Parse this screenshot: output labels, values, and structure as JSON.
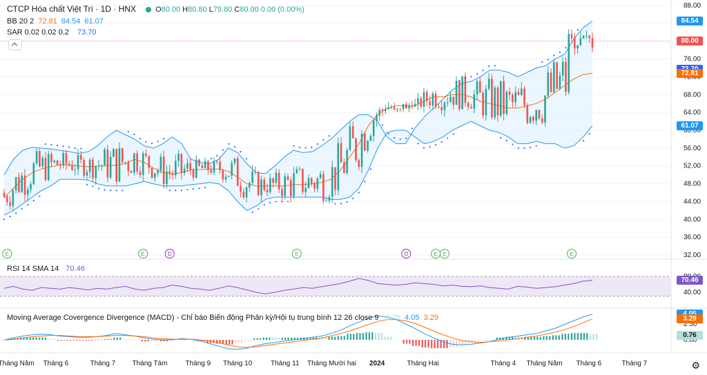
{
  "header": {
    "symbol_title": "CTCP Hóa chất Việt Trì · 1D · HNX",
    "ohlc": [
      {
        "k": "O",
        "v": "80.00"
      },
      {
        "k": "H",
        "v": "80.80"
      },
      {
        "k": "L",
        "v": "79.80"
      },
      {
        "k": "C",
        "v": "80.00"
      },
      {
        "k": "",
        "v": "0.00 (0.00%)"
      }
    ],
    "bb_label": "BB 20 2",
    "bb_values": [
      "72.81",
      "84.54",
      "61.07"
    ],
    "sar_label": "SAR 0.02 0.02 0.2",
    "sar_value": "73.70"
  },
  "rsi_legend": {
    "label": "RSI 14 SMA 14",
    "value": "70.46"
  },
  "macd_legend": {
    "label": "Moving Average Covergence Divergence (MACD) - Chỉ báo Biến động Phân kỳ/Hội tụ trung bình 12 26 close 9",
    "values": [
      "0.76",
      "4.05",
      "3.29"
    ]
  },
  "colors": {
    "up": "#26a69a",
    "down": "#ef5350",
    "bb_mid": "#ff6d00",
    "bb_band": "#2196f3",
    "bb_fill": "#e3f2fd",
    "sar": "#2962ff",
    "rsi": "#7e57c2",
    "rsi_fill": "#ede7f6",
    "macd": "#2196f3",
    "signal": "#ff6d00",
    "hist_up_strong": "#26a69a",
    "hist_up_weak": "#b2dfdb",
    "hist_dn_strong": "#ef5350",
    "hist_dn_weak": "#ffcdd2"
  },
  "axis_tags": {
    "price": [
      {
        "v": "84.54",
        "c": "#2196f3",
        "y": 84.54
      },
      {
        "v": "80.00",
        "c": "#ef5350",
        "y": 80.0
      },
      {
        "v": "73.70",
        "c": "#2962ff",
        "y": 73.7
      },
      {
        "v": "72.81",
        "c": "#ff6d00",
        "y": 72.81
      },
      {
        "v": "61.07",
        "c": "#2196f3",
        "y": 61.07
      }
    ],
    "rsi": [
      {
        "v": "70.46",
        "c": "#7e57c2",
        "y": 70.46
      }
    ],
    "macd": [
      {
        "v": "4.05",
        "c": "#2196f3",
        "y": 4.05
      },
      {
        "v": "3.29",
        "c": "#ff6d00",
        "y": 3.29
      },
      {
        "v": "0.76",
        "c": "#b2dfdb",
        "y": 0.76,
        "dark": true
      }
    ]
  },
  "price_ticks": [
    "88.00",
    "84.00",
    "80.00",
    "76.00",
    "72.00",
    "68.00",
    "64.00",
    "60.00",
    "56.00",
    "52.00",
    "48.00",
    "44.00",
    "40.00",
    "36.00",
    "32.00"
  ],
  "rsi_ticks": [
    "80.00",
    "40.00"
  ],
  "macd_ticks": [
    "2.50",
    "0.00"
  ],
  "time_labels": [
    "Tháng Năm",
    "Tháng 6",
    "Tháng 7",
    "Tháng Tám",
    "Tháng 9",
    "Tháng 10",
    "Tháng 11",
    "Tháng Mười hai",
    "2024",
    "Tháng Hai",
    "Tháng 4",
    "Tháng Năm",
    "Tháng 6",
    "Tháng 7"
  ],
  "event_markers": [
    {
      "t": "E",
      "i": 1,
      "kind": "E"
    },
    {
      "t": "E",
      "i": 47,
      "kind": "E"
    },
    {
      "t": "D",
      "i": 56,
      "kind": "D"
    },
    {
      "t": "E",
      "i": 99,
      "kind": "E"
    },
    {
      "t": "D",
      "i": 136,
      "kind": "D"
    },
    {
      "t": "E",
      "i": 146,
      "kind": "E"
    },
    {
      "t": "E",
      "i": 149,
      "kind": "E"
    },
    {
      "t": "E",
      "i": 192,
      "kind": "E"
    }
  ],
  "chart_data": {
    "type": "line",
    "title": "CTCP Hóa chất Việt Trì · 1D · HNX",
    "price_range": [
      32,
      88
    ],
    "bb_upper": [
      50,
      53.5,
      55.5,
      56.2,
      56,
      55.8,
      55.5,
      55.2,
      54.8,
      55.2,
      56.5,
      58.5,
      60,
      59,
      58,
      56.5,
      56,
      57,
      58.5,
      57,
      53.5,
      52.8,
      52.5,
      53.5,
      56,
      55,
      52.5,
      50.5,
      50.3,
      52,
      54,
      55.5,
      55,
      55.2,
      56.5,
      58,
      60,
      62,
      63.5,
      63.5,
      62,
      58.5,
      57,
      57,
      60.5,
      63,
      65,
      67,
      69,
      70.5,
      71,
      72,
      73.5,
      73.5,
      73,
      72,
      73,
      74,
      74.5,
      76,
      77,
      80.5,
      83,
      84.5
    ],
    "bb_mid": [
      44.8,
      47,
      49,
      50.5,
      51.3,
      51.8,
      52.3,
      52.2,
      52,
      51.8,
      52,
      52,
      52.2,
      52.5,
      53.5,
      52.8,
      51.5,
      50.5,
      50.2,
      50.5,
      51.1,
      51.2,
      51.3,
      51.3,
      50.8,
      49.5,
      48,
      47.5,
      47.5,
      47.5,
      47.5,
      47.8,
      47.8,
      48,
      48.3,
      49,
      51,
      54,
      57,
      61,
      63.5,
      65,
      65.5,
      65.5,
      65.5,
      66.5,
      67.5,
      67.5,
      68,
      68,
      67.5,
      66.5,
      66,
      65.5,
      65,
      65,
      65.5,
      66,
      67,
      68.5,
      70,
      71.5,
      72.5,
      72.8
    ],
    "bb_lower": [
      41,
      42,
      43.5,
      45,
      46.5,
      47.5,
      49,
      49,
      49,
      48.8,
      48,
      47.5,
      47.5,
      47.5,
      48,
      48.5,
      48,
      47.5,
      47.5,
      47.5,
      47.8,
      48,
      48.3,
      48,
      46.5,
      44,
      42,
      43,
      44.5,
      45,
      45,
      45,
      45,
      45,
      45,
      44.5,
      44.5,
      45,
      47,
      51,
      56,
      59.5,
      60,
      60,
      58.5,
      57,
      57.5,
      58.5,
      60,
      61,
      62,
      61,
      60,
      59.5,
      58.5,
      57,
      57,
      57.5,
      57,
      57,
      56,
      56.5,
      58.5,
      61
    ],
    "rsi": [
      50,
      55,
      48,
      45,
      52,
      50,
      48,
      52,
      49,
      46,
      50,
      48,
      52,
      55,
      48,
      45,
      50,
      52,
      58,
      55,
      50,
      48,
      45,
      50,
      56,
      52,
      46,
      40,
      36,
      40,
      45,
      48,
      52,
      50,
      54,
      58,
      62,
      68,
      75,
      70,
      62,
      60,
      58,
      60,
      64,
      62,
      60,
      56,
      58,
      55,
      54,
      56,
      52,
      50,
      48,
      55,
      53,
      50,
      52,
      54,
      58,
      62,
      68,
      70
    ],
    "macd": [
      0,
      0.3,
      0.6,
      0.8,
      0.9,
      0.8,
      0.6,
      0.5,
      0.4,
      0.4,
      0.5,
      0.7,
      1.0,
      0.8,
      0.6,
      0.3,
      0.1,
      0,
      0,
      0.2,
      0.1,
      -0.2,
      -0.6,
      -1.0,
      -1.4,
      -1.5,
      -1.3,
      -0.9,
      -0.6,
      -0.4,
      -0.2,
      0,
      0.2,
      0.4,
      0.6,
      1.0,
      1.5,
      2.2,
      2.8,
      3.4,
      3.8,
      3.6,
      3.2,
      2.5,
      1.8,
      1.0,
      0.3,
      -0.3,
      -0.7,
      -0.8,
      -0.7,
      -0.5,
      -0.3,
      0.1,
      0.4,
      0.6,
      0.8,
      1.0,
      1.4,
      1.8,
      2.4,
      3.0,
      3.6,
      4.05
    ],
    "signal": [
      0,
      0.1,
      0.3,
      0.5,
      0.6,
      0.7,
      0.7,
      0.6,
      0.5,
      0.5,
      0.5,
      0.6,
      0.7,
      0.7,
      0.6,
      0.5,
      0.3,
      0.2,
      0.1,
      0.1,
      0.1,
      0,
      -0.2,
      -0.5,
      -0.8,
      -1.1,
      -1.2,
      -1.1,
      -0.9,
      -0.7,
      -0.5,
      -0.3,
      -0.1,
      0.1,
      0.3,
      0.6,
      1.0,
      1.4,
      1.9,
      2.4,
      2.9,
      3.2,
      3.2,
      3.0,
      2.6,
      2.0,
      1.4,
      0.8,
      0.3,
      -0.1,
      -0.3,
      -0.4,
      -0.3,
      -0.2,
      0,
      0.2,
      0.4,
      0.6,
      0.9,
      1.2,
      1.6,
      2.1,
      2.7,
      3.29
    ]
  }
}
